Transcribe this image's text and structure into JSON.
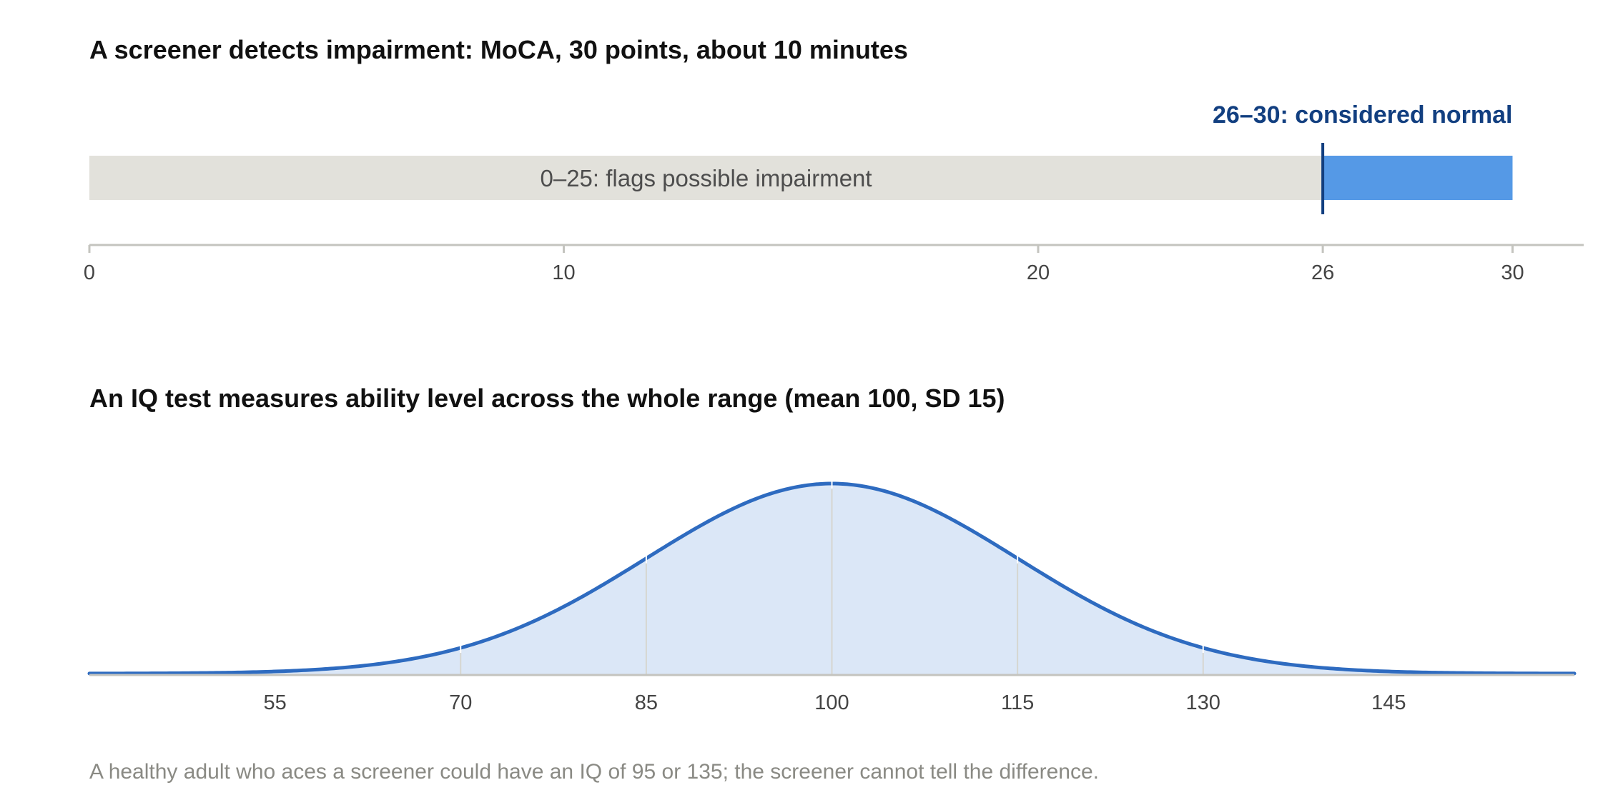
{
  "chart_data": [
    {
      "type": "bar",
      "title": "A screener detects impairment: MoCA, 30 points, about 10 minutes",
      "xlim": [
        0,
        31.5
      ],
      "ticks": [
        0,
        10,
        20,
        26,
        30
      ],
      "tick_labels": [
        "0",
        "10",
        "20",
        "26",
        "30"
      ],
      "ranges": [
        {
          "label": "0–25: flags possible impairment",
          "start": 0,
          "end": 26,
          "color": "#e2e1db"
        },
        {
          "label": "26–30: considered normal",
          "start": 26,
          "end": 30,
          "color": "#5599e6"
        }
      ],
      "cutoff": 26,
      "grid": false,
      "legend": "none"
    },
    {
      "type": "area",
      "title": "An IQ test measures ability level across the whole range (mean 100, SD 15)",
      "mean": 100,
      "sd": 15,
      "xlim": [
        40,
        160
      ],
      "ticks": [
        55,
        70,
        85,
        100,
        115,
        130,
        145
      ],
      "tick_labels": [
        "55",
        "70",
        "85",
        "100",
        "115",
        "130",
        "145"
      ],
      "reference_lines": [
        70,
        85,
        100,
        115,
        130
      ],
      "line_color": "#2e6bc0",
      "fill_color": "#dbe7f7",
      "grid": false,
      "legend": "none"
    }
  ],
  "footnote": "A healthy adult who aces a screener could have an IQ of 95 or 135; the screener cannot tell the difference."
}
